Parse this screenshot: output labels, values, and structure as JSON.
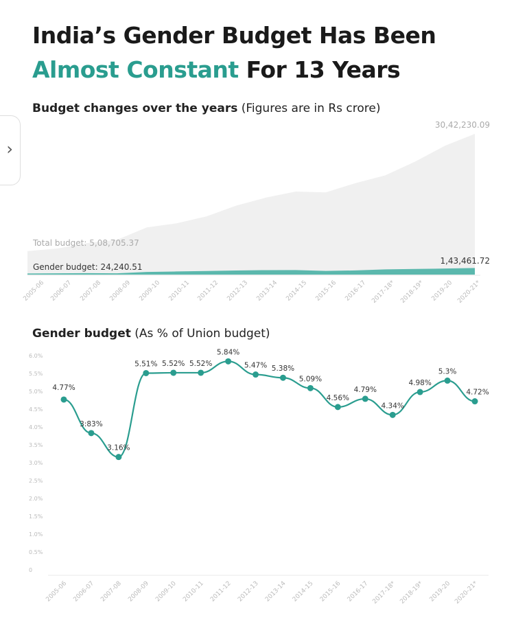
{
  "title": {
    "line1": "India’s Gender Budget Has Been",
    "highlight": "Almost Constant",
    "line2_rest": " For 13 Years"
  },
  "colors": {
    "accent": "#2a9d8f",
    "area_total": "#ececec",
    "area_gender": "#5bb8ad"
  },
  "chart_data": [
    {
      "type": "area",
      "title": "Budget changes over the years",
      "subtitle": "(Figures are in Rs crore)",
      "categories": [
        "2005-06",
        "2006-07",
        "2007-08",
        "2008-09",
        "2009-10",
        "2010-11",
        "2011-12",
        "2012-13",
        "2013-14",
        "2014-15",
        "2015-16",
        "2016-17",
        "2017-18*",
        "2018-19*",
        "2019-20",
        "2020-21*"
      ],
      "series": [
        {
          "name": "Total budget",
          "values": [
            508705.37,
            563991,
            680521,
            750884,
            1020838,
            1108749,
            1257729,
            1490925,
            1665297,
            1794892,
            1777477,
            1978060,
            2146735,
            2442213,
            2786349,
            3042230.09
          ]
        },
        {
          "name": "Gender budget",
          "values": [
            24240.51,
            28737,
            31178,
            27661,
            56858,
            67750,
            78251,
            88143,
            97134,
            98030,
            79258,
            90625,
            113327,
            121961,
            131700,
            143461.72
          ]
        }
      ],
      "annotations": {
        "total_start": "Total budget: 5,08,705.37",
        "total_end": "30,42,230.09",
        "gender_start": "Gender budget: 24,240.51",
        "gender_end": "1,43,461.72"
      }
    },
    {
      "type": "line",
      "title": "Gender budget",
      "subtitle": "(As % of Union budget)",
      "categories": [
        "2005-06",
        "2006-07",
        "2007-08",
        "2008-09",
        "2009-10",
        "2010-11",
        "2011-12",
        "2012-13",
        "2013-14",
        "2014-15",
        "2015-16",
        "2016-17",
        "2017-18*",
        "2018-19*",
        "2019-20",
        "2020-21*"
      ],
      "values": [
        4.77,
        3.83,
        3.16,
        5.51,
        5.52,
        5.52,
        5.84,
        5.47,
        5.38,
        5.09,
        4.56,
        4.79,
        4.34,
        4.98,
        5.3,
        4.72
      ],
      "labels": [
        "4.77%",
        "3:83%",
        "3.16%",
        "5.51%",
        "5.52%",
        "5.52%",
        "5.84%",
        "5.47%",
        "5.38%",
        "5.09%",
        "4.56%",
        "4.79%",
        "4.34%",
        "4.98%",
        "5.3%",
        "4.72%"
      ],
      "yticks": [
        "0",
        "0.5%",
        "1.0%",
        "1.5%",
        "2.0%",
        "2.5%",
        "3.0%",
        "3.5%",
        "4.0%",
        "4.5%",
        "5.0%",
        "5.5%",
        "6.0%"
      ],
      "ylim": [
        0,
        6
      ]
    }
  ]
}
